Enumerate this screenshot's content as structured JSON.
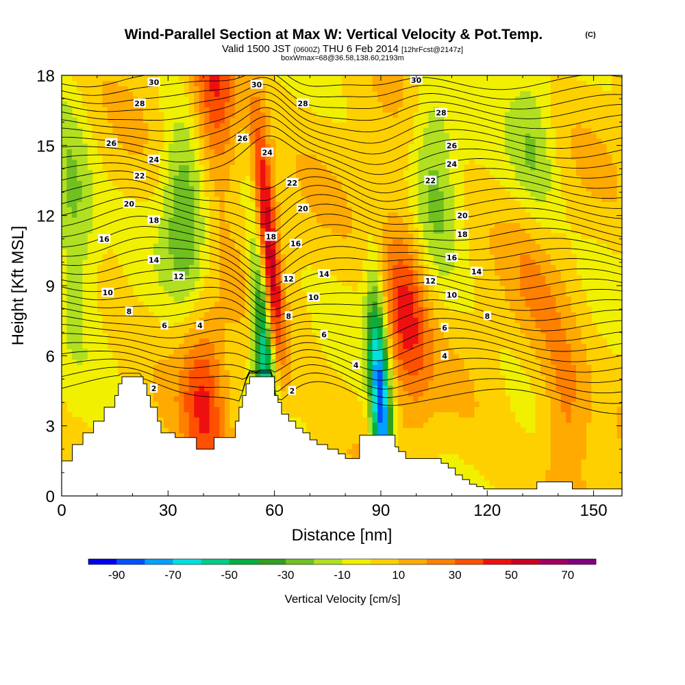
{
  "chart_data": {
    "type": "heatmap",
    "title": "Wind-Parallel Section at Max W: Vertical Velocity & Pot.Temp.",
    "title_mark": "(C)",
    "subtitle": {
      "valid_label": "Valid 1500 JST",
      "utc": "(0600Z)",
      "date": "THU 6 Feb 2014",
      "forecast": "[12hrFcst@2147z]"
    },
    "box_info": "boxWmax=68@36.58,138.60,2193m",
    "xlabel": "Distance [nm]",
    "ylabel": "Height [Kft MSL]",
    "xlim": [
      0,
      158
    ],
    "ylim": [
      0,
      18
    ],
    "x_ticks": [
      0,
      30,
      60,
      90,
      120,
      150
    ],
    "y_ticks": [
      0,
      3,
      6,
      9,
      12,
      15,
      18
    ],
    "colorbar": {
      "label": "Vertical Velocity [cm/s]",
      "tick_labels": [
        "-90",
        "-70",
        "-50",
        "-30",
        "-10",
        "10",
        "30",
        "50",
        "70"
      ],
      "range": [
        -100,
        80
      ],
      "colors": [
        "#0000ee",
        "#0050ff",
        "#00a0ff",
        "#00e0e0",
        "#00cc88",
        "#00b040",
        "#30a020",
        "#70c020",
        "#b0e020",
        "#f0f000",
        "#ffd000",
        "#ffaa00",
        "#ff8000",
        "#ff5000",
        "#ee1010",
        "#cc0020",
        "#a00060",
        "#800080"
      ]
    },
    "potential_temperature_contours": {
      "labels": [
        {
          "value": "30",
          "x": 26,
          "y": 17.7
        },
        {
          "value": "28",
          "x": 22,
          "y": 16.8
        },
        {
          "value": "26",
          "x": 14,
          "y": 15.1
        },
        {
          "value": "24",
          "x": 26,
          "y": 14.4
        },
        {
          "value": "22",
          "x": 22,
          "y": 13.7
        },
        {
          "value": "20",
          "x": 19,
          "y": 12.5
        },
        {
          "value": "18",
          "x": 26,
          "y": 11.8
        },
        {
          "value": "16",
          "x": 12,
          "y": 11.0
        },
        {
          "value": "14",
          "x": 26,
          "y": 10.1
        },
        {
          "value": "12",
          "x": 33,
          "y": 9.4
        },
        {
          "value": "10",
          "x": 13,
          "y": 8.7
        },
        {
          "value": "8",
          "x": 19,
          "y": 7.9
        },
        {
          "value": "6",
          "x": 29,
          "y": 7.3
        },
        {
          "value": "4",
          "x": 39,
          "y": 7.3
        },
        {
          "value": "2",
          "x": 26,
          "y": 4.6
        },
        {
          "value": "30",
          "x": 55,
          "y": 17.6
        },
        {
          "value": "28",
          "x": 68,
          "y": 16.8
        },
        {
          "value": "26",
          "x": 51,
          "y": 15.3
        },
        {
          "value": "24",
          "x": 58,
          "y": 14.7
        },
        {
          "value": "22",
          "x": 65,
          "y": 13.4
        },
        {
          "value": "20",
          "x": 68,
          "y": 12.3
        },
        {
          "value": "18",
          "x": 59,
          "y": 11.1
        },
        {
          "value": "16",
          "x": 66,
          "y": 10.8
        },
        {
          "value": "12",
          "x": 64,
          "y": 9.3
        },
        {
          "value": "14",
          "x": 74,
          "y": 9.5
        },
        {
          "value": "10",
          "x": 71,
          "y": 8.5
        },
        {
          "value": "8",
          "x": 64,
          "y": 7.7
        },
        {
          "value": "6",
          "x": 74,
          "y": 6.9
        },
        {
          "value": "4",
          "x": 83,
          "y": 5.6
        },
        {
          "value": "2",
          "x": 65,
          "y": 4.5
        },
        {
          "value": "30",
          "x": 100,
          "y": 17.8
        },
        {
          "value": "28",
          "x": 107,
          "y": 16.4
        },
        {
          "value": "26",
          "x": 110,
          "y": 15.0
        },
        {
          "value": "24",
          "x": 110,
          "y": 14.2
        },
        {
          "value": "22",
          "x": 104,
          "y": 13.5
        },
        {
          "value": "20",
          "x": 113,
          "y": 12.0
        },
        {
          "value": "18",
          "x": 113,
          "y": 11.2
        },
        {
          "value": "16",
          "x": 110,
          "y": 10.2
        },
        {
          "value": "14",
          "x": 117,
          "y": 9.6
        },
        {
          "value": "12",
          "x": 104,
          "y": 9.2
        },
        {
          "value": "10",
          "x": 110,
          "y": 8.6
        },
        {
          "value": "8",
          "x": 120,
          "y": 7.7
        },
        {
          "value": "6",
          "x": 108,
          "y": 7.2
        },
        {
          "value": "4",
          "x": 108,
          "y": 6.0
        }
      ]
    },
    "vertical_velocity_features": [
      {
        "x_center": 58,
        "z_center": 11.0,
        "peak_cm_s": 68,
        "type": "updraft"
      },
      {
        "x_center": 57,
        "z_center": 6.5,
        "peak_cm_s": -70,
        "type": "downdraft"
      },
      {
        "x_center": 90,
        "z_center": 3.8,
        "peak_cm_s": -90,
        "type": "downdraft"
      },
      {
        "x_center": 43,
        "z_center": 17.0,
        "peak_cm_s": 40,
        "type": "updraft"
      },
      {
        "x_center": 40,
        "z_center": 4.5,
        "peak_cm_s": 35,
        "type": "updraft"
      },
      {
        "x_center": 97,
        "z_center": 8.0,
        "peak_cm_s": 40,
        "type": "updraft"
      },
      {
        "x_center": 35,
        "z_center": 12.0,
        "peak_cm_s": -35,
        "type": "downdraft"
      },
      {
        "x_center": 3,
        "z_center": 12.0,
        "peak_cm_s": -30,
        "type": "downdraft"
      },
      {
        "x_center": 105,
        "z_center": 14.0,
        "peak_cm_s": -25,
        "type": "downdraft"
      },
      {
        "x_center": 133,
        "z_center": 14.0,
        "peak_cm_s": -28,
        "type": "downdraft"
      },
      {
        "x_center": 142,
        "z_center": 3.5,
        "peak_cm_s": 25,
        "type": "updraft"
      },
      {
        "x_center": 133,
        "z_center": 10.5,
        "peak_cm_s": 20,
        "type": "updraft"
      }
    ],
    "terrain_kft": [
      [
        0,
        1.5
      ],
      [
        2,
        1.5
      ],
      [
        3,
        2.2
      ],
      [
        5,
        2.2
      ],
      [
        6,
        2.7
      ],
      [
        8,
        2.7
      ],
      [
        9,
        3.2
      ],
      [
        11,
        3.2
      ],
      [
        12,
        3.8
      ],
      [
        14,
        3.8
      ],
      [
        15,
        4.3
      ],
      [
        16,
        4.8
      ],
      [
        17,
        5.1
      ],
      [
        22,
        5.1
      ],
      [
        23,
        4.8
      ],
      [
        24,
        4.3
      ],
      [
        25,
        3.8
      ],
      [
        27,
        3.2
      ],
      [
        28,
        2.7
      ],
      [
        31,
        2.7
      ],
      [
        32,
        2.5
      ],
      [
        37,
        2.5
      ],
      [
        38,
        2.0
      ],
      [
        42,
        2.0
      ],
      [
        43,
        2.5
      ],
      [
        48,
        2.5
      ],
      [
        49,
        3.2
      ],
      [
        50,
        3.8
      ],
      [
        51,
        4.3
      ],
      [
        52,
        4.8
      ],
      [
        53,
        5.1
      ],
      [
        59,
        5.1
      ],
      [
        60,
        4.3
      ],
      [
        61,
        4.0
      ],
      [
        62,
        3.5
      ],
      [
        64,
        3.2
      ],
      [
        66,
        2.9
      ],
      [
        68,
        2.7
      ],
      [
        70,
        2.4
      ],
      [
        72,
        2.2
      ],
      [
        75,
        2.0
      ],
      [
        78,
        1.8
      ],
      [
        80,
        1.6
      ],
      [
        83,
        1.6
      ],
      [
        84,
        2.6
      ],
      [
        93,
        2.6
      ],
      [
        94,
        2.1
      ],
      [
        95,
        1.9
      ],
      [
        97,
        1.6
      ],
      [
        105,
        1.6
      ],
      [
        107,
        1.4
      ],
      [
        109,
        1.2
      ],
      [
        111,
        0.9
      ],
      [
        113,
        0.7
      ],
      [
        115,
        0.5
      ],
      [
        117,
        0.4
      ],
      [
        119,
        0.3
      ],
      [
        133,
        0.3
      ],
      [
        134,
        0.6
      ],
      [
        143,
        0.6
      ],
      [
        144,
        0.3
      ],
      [
        158,
        0.3
      ]
    ]
  }
}
